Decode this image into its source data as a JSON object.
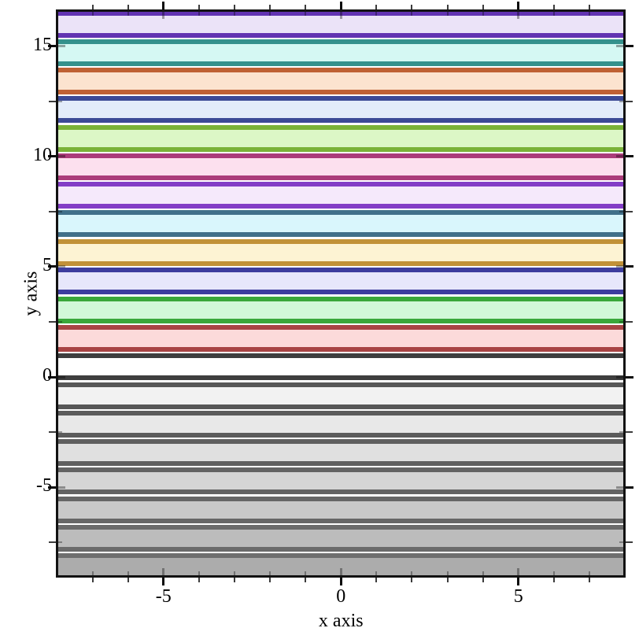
{
  "figure": {
    "background": "#ffffff",
    "frame_color": "#121212"
  },
  "chart_data": {
    "type": "area",
    "subtype": "horizontal-interval-bands",
    "title": "",
    "xlabel": "x axis",
    "ylabel": "y axis",
    "x_range": [
      -8,
      8
    ],
    "y_range": [
      -9.05,
      16.63
    ],
    "grid": false,
    "legend": "none",
    "x_major_ticks": [
      {
        "value": -5,
        "label": "-5"
      },
      {
        "value": 0,
        "label": "0"
      },
      {
        "value": 5,
        "label": "5"
      }
    ],
    "x_minor_ticks": [
      -7,
      -6,
      -4,
      -3,
      -2,
      -1,
      1,
      2,
      3,
      4,
      6,
      7
    ],
    "y_major_ticks": [
      {
        "value": -5,
        "label": "-5"
      },
      {
        "value": 0,
        "label": "0"
      },
      {
        "value": 5,
        "label": "5"
      },
      {
        "value": 10,
        "label": "10"
      },
      {
        "value": 15,
        "label": "15"
      }
    ],
    "y_minor_ticks": [
      -7.5,
      -2.5,
      2.5,
      7.5,
      12.5
    ],
    "band_height": 1.0,
    "band_spacing": 1.295,
    "bands": [
      {
        "name": "violet",
        "palette_index": 12,
        "y_center": 16.0,
        "line_color": "#6233b2",
        "fill_color": "#ebe3f8"
      },
      {
        "name": "teal",
        "palette_index": 11,
        "y_center": 14.71,
        "line_color": "#35918c",
        "fill_color": "#d5f8f3"
      },
      {
        "name": "chocolate",
        "palette_index": 10,
        "y_center": 13.41,
        "line_color": "#bf6134",
        "fill_color": "#fce3cf"
      },
      {
        "name": "navy-blue",
        "palette_index": 9,
        "y_center": 12.12,
        "line_color": "#3c4a96",
        "fill_color": "#e3ecfa"
      },
      {
        "name": "olive-green",
        "palette_index": 8,
        "y_center": 10.82,
        "line_color": "#7ab238",
        "fill_color": "#dcf7c6"
      },
      {
        "name": "magenta",
        "palette_index": 7,
        "y_center": 9.53,
        "line_color": "#ab3c7a",
        "fill_color": "#fce0ee"
      },
      {
        "name": "purple",
        "palette_index": 6,
        "y_center": 8.23,
        "line_color": "#833dc6",
        "fill_color": "#f5e9fb"
      },
      {
        "name": "steel-blue",
        "palette_index": 5,
        "y_center": 6.94,
        "line_color": "#41708a",
        "fill_color": "#d9f6fc"
      },
      {
        "name": "goldenrod",
        "palette_index": 4,
        "y_center": 5.64,
        "line_color": "#c19138",
        "fill_color": "#fdf3d3"
      },
      {
        "name": "blue",
        "palette_index": 3,
        "y_center": 4.35,
        "line_color": "#3d3d9e",
        "fill_color": "#e7e7fb"
      },
      {
        "name": "green",
        "palette_index": 2,
        "y_center": 3.05,
        "line_color": "#3aa73a",
        "fill_color": "#d2f8d8"
      },
      {
        "name": "red",
        "palette_index": 1,
        "y_center": 1.76,
        "line_color": "#a84444",
        "fill_color": "#fcdada"
      },
      {
        "name": "black",
        "palette_index": 0,
        "y_center": 0.46,
        "line_color": "#3e3e3e",
        "fill_color": "#ffffff"
      },
      {
        "name": "gray-1",
        "palette_index": -1,
        "y_center": -0.84,
        "line_color": "#575757",
        "fill_color": "#f2f2f2"
      },
      {
        "name": "gray-2",
        "palette_index": -2,
        "y_center": -2.13,
        "line_color": "#5b5b5b",
        "fill_color": "#e8e8e8"
      },
      {
        "name": "gray-3",
        "palette_index": -3,
        "y_center": -3.43,
        "line_color": "#5f5f5f",
        "fill_color": "#e0e0e0"
      },
      {
        "name": "gray-4",
        "palette_index": -4,
        "y_center": -4.72,
        "line_color": "#636363",
        "fill_color": "#d5d5d5"
      },
      {
        "name": "gray-5",
        "palette_index": -5,
        "y_center": -6.02,
        "line_color": "#676767",
        "fill_color": "#c9c9c9"
      },
      {
        "name": "gray-6",
        "palette_index": -6,
        "y_center": -7.31,
        "line_color": "#6b6b6b",
        "fill_color": "#bcbcbc"
      },
      {
        "name": "gray-7",
        "palette_index": -7,
        "y_center": -8.61,
        "line_color": "#6f6f6f",
        "fill_color": "#acacac"
      }
    ]
  }
}
